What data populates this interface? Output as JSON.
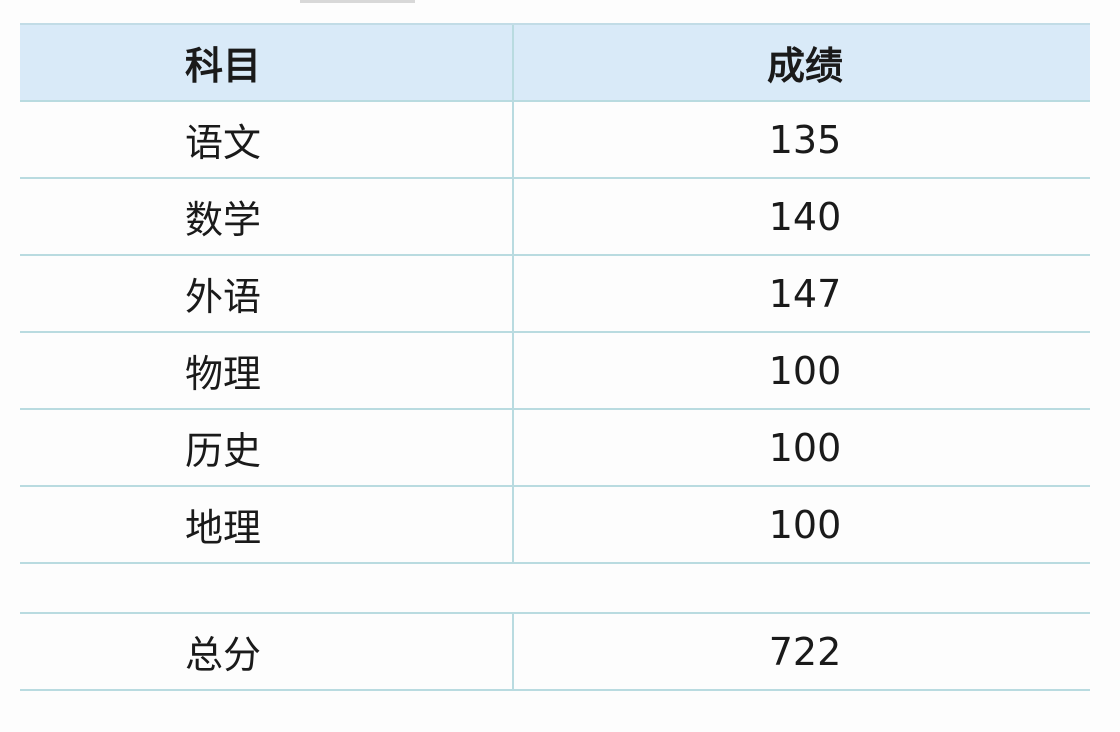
{
  "table": {
    "headers": [
      "科目",
      "成绩"
    ],
    "rows": [
      {
        "subject": "语文",
        "score": "135"
      },
      {
        "subject": "数学",
        "score": "140"
      },
      {
        "subject": "外语",
        "score": "147"
      },
      {
        "subject": "物理",
        "score": "100"
      },
      {
        "subject": "历史",
        "score": "100"
      },
      {
        "subject": "地理",
        "score": "100"
      }
    ],
    "total": {
      "label": "总分",
      "score": "722"
    }
  },
  "colors": {
    "header_bg": "#d9eaf8",
    "border": "#b9dbe0"
  }
}
